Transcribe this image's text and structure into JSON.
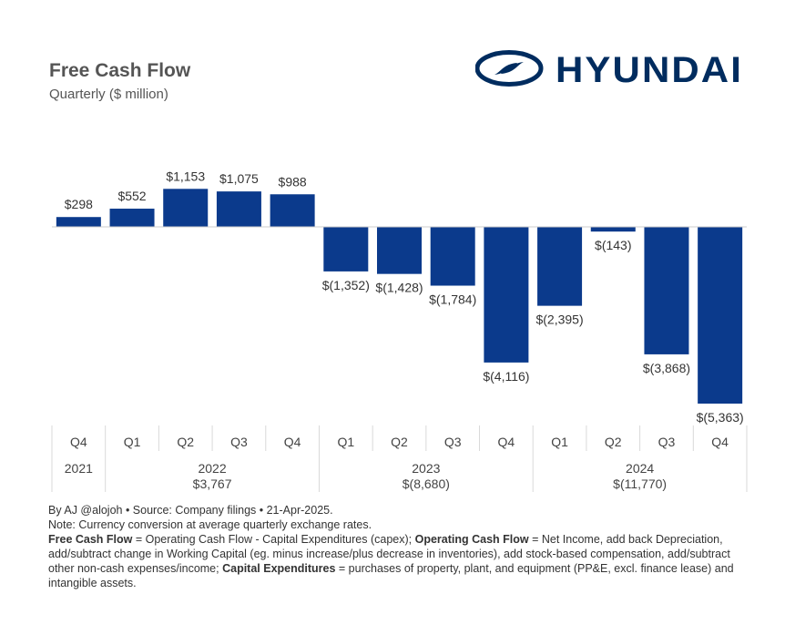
{
  "header": {
    "title": "Free Cash Flow",
    "subtitle": "Quarterly ($ million)",
    "brand": "HYUNDAI",
    "brand_color": "#002C5F"
  },
  "chart_data": {
    "type": "bar",
    "title": "Free Cash Flow",
    "ylabel": "$ million",
    "categories": [
      "Q4 2021",
      "Q1 2022",
      "Q2 2022",
      "Q3 2022",
      "Q4 2022",
      "Q1 2023",
      "Q2 2023",
      "Q3 2023",
      "Q4 2023",
      "Q1 2024",
      "Q2 2024",
      "Q3 2024",
      "Q4 2024"
    ],
    "quarters": [
      "Q4",
      "Q1",
      "Q2",
      "Q3",
      "Q4",
      "Q1",
      "Q2",
      "Q3",
      "Q4",
      "Q1",
      "Q2",
      "Q3",
      "Q4"
    ],
    "values": [
      298,
      552,
      1153,
      1075,
      988,
      -1352,
      -1428,
      -1784,
      -4116,
      -2395,
      -143,
      -3868,
      -5363
    ],
    "labels": [
      "$298",
      "$552",
      "$1,153",
      "$1,075",
      "$988",
      "$(1,352)",
      "$(1,428)",
      "$(1,784)",
      "$(4,116)",
      "$(2,395)",
      "$(143)",
      "$(3,868)",
      "$(5,363)"
    ],
    "years": [
      {
        "year": "2021",
        "total": "",
        "count": 1
      },
      {
        "year": "2022",
        "total": "$3,767",
        "count": 4
      },
      {
        "year": "2023",
        "total": "$(8,680)",
        "count": 4
      },
      {
        "year": "2024",
        "total": "$(11,770)",
        "count": 4
      }
    ],
    "bar_color": "#0B3A8C",
    "ylim": [
      -5363,
      1153
    ],
    "grid": false
  },
  "footer": {
    "line1": "By AJ @alojoh • Source: Company filings • 21-Apr-2025.",
    "line2": "Note: Currency conversion at average quarterly exchange rates.",
    "def1_term": "Free Cash Flow",
    "def1_text": " = Operating Cash Flow - Capital Expenditures (capex); ",
    "def2_term": "Operating Cash Flow",
    "def2_text": " = Net Income, add back Depreciation, add/subtract change in Working Capital (eg. minus increase/plus decrease in inventories), add stock-based compensation, add/subtract other non-cash expenses/income; ",
    "def3_term": "Capital Expenditures",
    "def3_text": " = purchases of property, plant, and equipment (PP&E, excl. finance lease) and intangible assets."
  }
}
